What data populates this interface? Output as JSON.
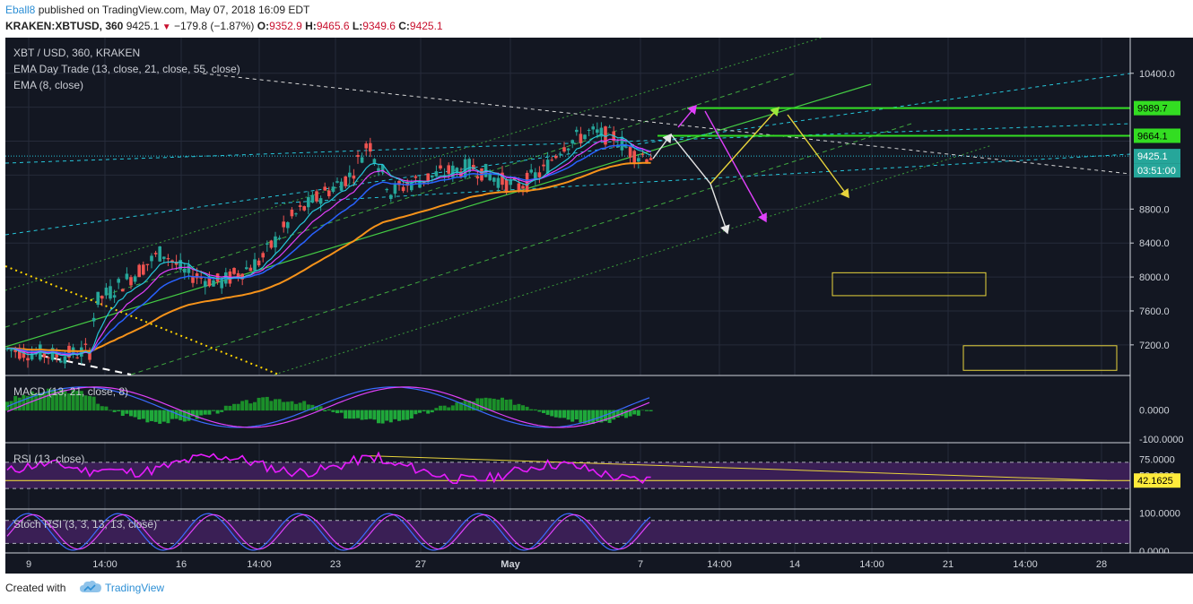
{
  "header": {
    "author": "Eball8",
    "published": "published on TradingView.com, May 07, 2018 16:09 EDT",
    "symbol": "KRAKEN:XBTUSD, 360",
    "last": "9425.1",
    "change": "−179.8 (−1.87%)",
    "o_label": "O:",
    "o": "9352.9",
    "h_label": "H:",
    "h": "9465.6",
    "l_label": "L:",
    "l": "9349.6",
    "c_label": "C:",
    "c": "9425.1"
  },
  "legend": {
    "title": "XBT / USD, 360, KRAKEN",
    "ema_trade": "EMA Day Trade (13, close, 21, close, 55, close)",
    "ema8": "EMA (8, close)"
  },
  "panes": {
    "macd": "MACD (13, 21, close, 8)",
    "rsi": "RSI (13, close)",
    "stoch": "Stoch RSI (3, 3, 13, 13, close)"
  },
  "badges": {
    "price1": "9989.7",
    "price2": "9664.1",
    "price3": "9425.1",
    "countdown": "03:51:00",
    "rsi_value": "42.1625"
  },
  "colors": {
    "background": "#131722",
    "up": "#26a69a",
    "down": "#ef5350",
    "ema_orange": "#f7931a",
    "ema_blue": "#2962ff",
    "ema_magenta": "#e040fb",
    "ema_cyan": "#26c6da",
    "level_green": "#33dd22",
    "channel_green": "#4caf50",
    "channel_cyan": "#26c6da",
    "rsi_line": "#e81cff",
    "yellow": "#ffeb3b"
  },
  "footer": {
    "created": "Created with",
    "brand": "TradingView"
  },
  "chart_data": {
    "type": "candlestick",
    "price_axis_ticks": [
      10400,
      10000,
      9600,
      9200,
      8800,
      8400,
      8000,
      7600,
      7200
    ],
    "price_axis_labels": [
      "10400.0",
      "8800.0",
      "8400.0",
      "8000.0",
      "7600.0",
      "7200.0"
    ],
    "price_range": [
      6850,
      10820
    ],
    "time_labels": [
      "9",
      "14:00",
      "16",
      "14:00",
      "23",
      "27",
      "May",
      "7",
      "14:00",
      "14",
      "14:00",
      "21",
      "14:00",
      "28"
    ],
    "last_close": 9425.1,
    "levels": [
      9989.7,
      9664.1
    ],
    "macd": {
      "ticks": [
        0,
        -100
      ],
      "tick_labels": [
        "0.0000",
        "-100.0000"
      ],
      "range": [
        -110,
        120
      ]
    },
    "rsi": {
      "ticks": [
        75,
        50
      ],
      "tick_labels": [
        "75.0000",
        "50.0000"
      ],
      "bands": [
        70,
        30
      ],
      "value": 42.1625,
      "range": [
        0,
        100
      ]
    },
    "stoch_rsi": {
      "ticks": [
        100,
        0
      ],
      "tick_labels": [
        "100.0000",
        "0.0000"
      ],
      "bands": [
        80,
        20
      ],
      "range": [
        -5,
        110
      ]
    },
    "projection_rectangles": [
      {
        "time_from": "Day 15.5",
        "time_to": "Day 19",
        "price_from": 8050,
        "price_to": 7780
      },
      {
        "time_from": "Day 21.5",
        "time_to": "Day 26",
        "price_from": 7190,
        "price_to": 6900
      }
    ]
  }
}
